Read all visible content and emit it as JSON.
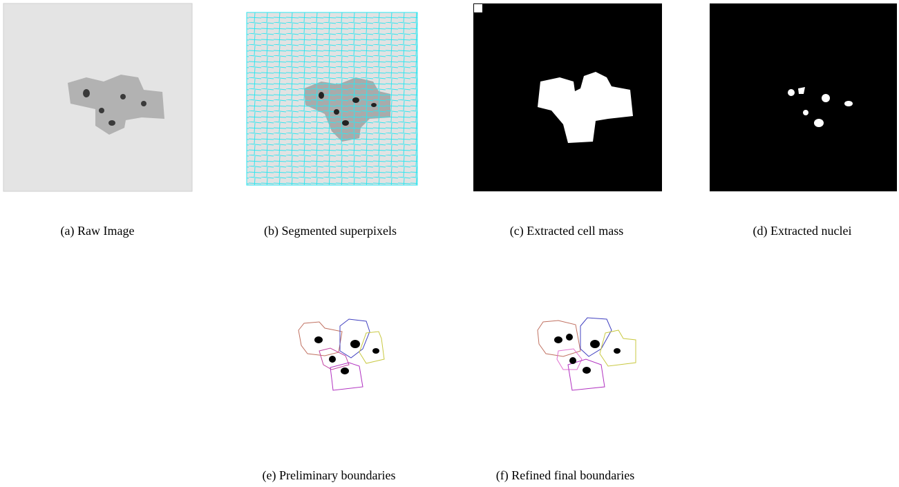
{
  "figures": [
    {
      "caption": "(a) Raw Image"
    },
    {
      "caption": "(b) Segmented superpixels"
    },
    {
      "caption": "(c) Extracted cell mass"
    },
    {
      "caption": "(d) Extracted nuclei"
    },
    {
      "caption": "(e) Preliminary boundaries"
    },
    {
      "caption": "(f) Refined final boundaries"
    }
  ]
}
